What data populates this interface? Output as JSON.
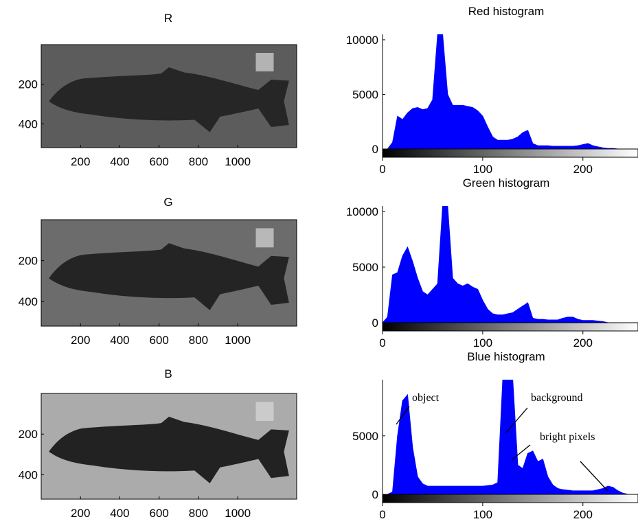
{
  "chart_data": [
    {
      "type": "image",
      "title": "R",
      "background_color": "#5c5c5c",
      "fish_color": "#262626",
      "xlim": [
        0,
        1300
      ],
      "ylim": [
        0,
        520
      ],
      "xticks": [
        200,
        400,
        600,
        800,
        1000
      ],
      "yticks": [
        200,
        400
      ]
    },
    {
      "type": "image",
      "title": "G",
      "background_color": "#6c6c6c",
      "fish_color": "#242424",
      "xlim": [
        0,
        1300
      ],
      "ylim": [
        0,
        520
      ],
      "xticks": [
        200,
        400,
        600,
        800,
        1000
      ],
      "yticks": [
        200,
        400
      ]
    },
    {
      "type": "image",
      "title": "B",
      "background_color": "#ababab",
      "fish_color": "#222222",
      "xlim": [
        0,
        1300
      ],
      "ylim": [
        0,
        520
      ],
      "xticks": [
        200,
        400,
        600,
        800,
        1000
      ],
      "yticks": [
        200,
        400
      ]
    },
    {
      "type": "area",
      "title": "Red histogram",
      "color": "#0000ff",
      "x": [
        0,
        5,
        10,
        15,
        20,
        25,
        30,
        35,
        40,
        45,
        50,
        55,
        60,
        65,
        70,
        75,
        80,
        85,
        90,
        95,
        100,
        105,
        110,
        115,
        120,
        125,
        130,
        135,
        140,
        145,
        150,
        155,
        160,
        165,
        170,
        175,
        180,
        185,
        190,
        195,
        200,
        205,
        210,
        215,
        220,
        225,
        230,
        235,
        240,
        245,
        250,
        255
      ],
      "values": [
        0,
        0,
        600,
        3000,
        2700,
        3300,
        3700,
        3800,
        3600,
        3700,
        4500,
        10500,
        10500,
        5000,
        4000,
        4000,
        4000,
        3900,
        3800,
        3500,
        3000,
        2000,
        1100,
        800,
        800,
        800,
        900,
        1100,
        1500,
        1700,
        500,
        300,
        300,
        300,
        250,
        250,
        250,
        250,
        250,
        300,
        400,
        500,
        300,
        200,
        100,
        50,
        50,
        0,
        0,
        0,
        0,
        0
      ],
      "xlim": [
        0,
        255
      ],
      "ylim": [
        0,
        10500
      ],
      "xticks": [
        0,
        100,
        200
      ],
      "yticks": [
        0,
        5000,
        10000
      ]
    },
    {
      "type": "area",
      "title": "Green histogram",
      "color": "#0000ff",
      "x": [
        0,
        5,
        10,
        15,
        20,
        25,
        30,
        35,
        40,
        45,
        50,
        55,
        60,
        65,
        70,
        75,
        80,
        85,
        90,
        95,
        100,
        105,
        110,
        115,
        120,
        125,
        130,
        135,
        140,
        145,
        150,
        155,
        160,
        165,
        170,
        175,
        180,
        185,
        190,
        195,
        200,
        205,
        210,
        215,
        220,
        225,
        230,
        235,
        240,
        245,
        250,
        255
      ],
      "values": [
        0,
        500,
        4300,
        4500,
        6000,
        6800,
        5500,
        4000,
        2800,
        2500,
        3000,
        3500,
        10500,
        10500,
        4000,
        3500,
        3300,
        3500,
        3200,
        3000,
        2000,
        1200,
        800,
        700,
        700,
        800,
        900,
        1200,
        1500,
        1800,
        400,
        300,
        300,
        250,
        250,
        250,
        400,
        500,
        500,
        300,
        200,
        200,
        200,
        150,
        100,
        0,
        0,
        0,
        0,
        0,
        0,
        0
      ],
      "xlim": [
        0,
        255
      ],
      "ylim": [
        0,
        10500
      ],
      "xticks": [
        0,
        100,
        200
      ],
      "yticks": [
        0,
        5000,
        10000
      ]
    },
    {
      "type": "area",
      "title": "Blue histogram",
      "color": "#0000ff",
      "x": [
        0,
        5,
        10,
        15,
        20,
        25,
        30,
        35,
        40,
        45,
        50,
        55,
        60,
        65,
        70,
        75,
        80,
        85,
        90,
        95,
        100,
        105,
        110,
        115,
        120,
        125,
        130,
        135,
        140,
        145,
        150,
        155,
        160,
        165,
        170,
        175,
        180,
        185,
        190,
        195,
        200,
        205,
        210,
        215,
        220,
        225,
        230,
        235,
        240,
        245,
        250,
        255
      ],
      "values": [
        0,
        0,
        200,
        5000,
        8000,
        8500,
        4000,
        1500,
        900,
        700,
        700,
        700,
        700,
        700,
        700,
        700,
        700,
        700,
        700,
        700,
        700,
        750,
        800,
        1000,
        9800,
        9800,
        9800,
        2500,
        2200,
        3500,
        3700,
        2800,
        3000,
        1500,
        800,
        500,
        400,
        350,
        300,
        300,
        300,
        300,
        300,
        400,
        500,
        700,
        600,
        300,
        100,
        0,
        0,
        0
      ],
      "xlim": [
        0,
        255
      ],
      "ylim": [
        0,
        9800
      ],
      "xticks": [
        0,
        100,
        200
      ],
      "yticks": [
        0,
        5000
      ],
      "annotations": [
        "object",
        "background",
        "bright pixels"
      ]
    }
  ]
}
